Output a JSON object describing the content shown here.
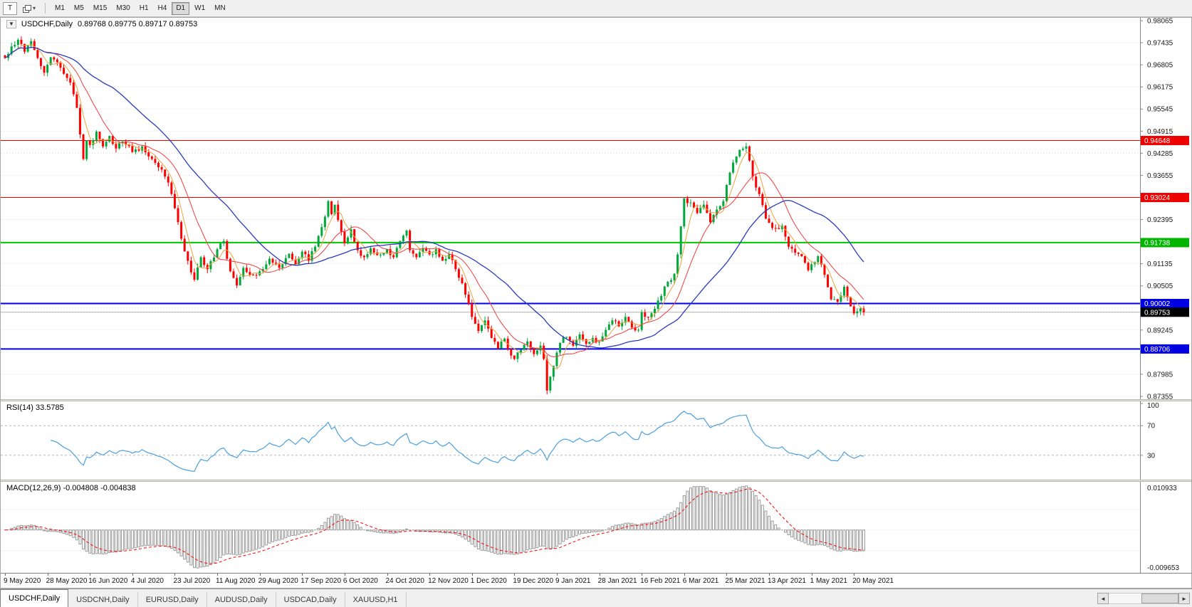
{
  "toolbar": {
    "t_button": "T",
    "timeframes": [
      "M1",
      "M5",
      "M15",
      "M30",
      "H1",
      "H4",
      "D1",
      "W1",
      "MN"
    ],
    "active_timeframe": "D1"
  },
  "icons": {
    "chevron_down": "▾",
    "scroll_left": "◄",
    "scroll_right": "►",
    "one_click": "▼"
  },
  "chart_header": {
    "symbol": "USDCHF,Daily",
    "ohlc": "0.89768 0.89775 0.89717 0.89753"
  },
  "indicators": {
    "rsi_label": "RSI(14) 33.5785",
    "macd_label": "MACD(12,26,9) -0.004808 -0.004838"
  },
  "tabbar": {
    "tabs": [
      "USDCHF,Daily",
      "USDCNH,Daily",
      "EURUSD,Daily",
      "AUDUSD,Daily",
      "USDCAD,Daily",
      "XAUUSD,H1"
    ],
    "active_tab": "USDCHF,Daily"
  },
  "colors": {
    "bull": "#00a83c",
    "bear": "#ff0000",
    "grid": "#d8d8d8",
    "rsi_line": "#4aa0e0",
    "level_line": "#b8b8b8",
    "macd_hist": "#9a9a9a",
    "macd_signal": "#ff0000",
    "axis_text": "#1a1a1a",
    "tag_text": "#ffffff"
  },
  "chart_data": [
    {
      "type": "candlestick",
      "title": "USDCHF,Daily",
      "ohlc_display": {
        "open": "0.89768",
        "high": "0.89775",
        "low": "0.89717",
        "close": "0.89753"
      },
      "y_min": 0.87355,
      "y_max": 0.98065,
      "y_ticks": [
        0.98065,
        0.97435,
        0.96805,
        0.96175,
        0.95545,
        0.94915,
        0.94285,
        0.93655,
        0.93025,
        0.92395,
        0.91765,
        0.91135,
        0.90505,
        0.89875,
        0.89245,
        0.88615,
        0.87985,
        0.87355
      ],
      "price_tags": [
        {
          "price": 0.94648,
          "label": "0.94648",
          "bg": "#ee0000",
          "line_color": "#ee0000",
          "width": 1
        },
        {
          "price": 0.93024,
          "label": "0.93024",
          "bg": "#ee0000",
          "line_color": "#ee0000",
          "width": 1
        },
        {
          "price": 0.91738,
          "label": "0.91738",
          "bg": "#00b400",
          "line_color": "#00c800",
          "width": 2
        },
        {
          "price": 0.90002,
          "label": "0.90002",
          "bg": "#0000e0",
          "line_color": "#0000ee",
          "width": 2
        },
        {
          "price": 0.89753,
          "label": "0.89753",
          "bg": "#000000",
          "line_color": "#b0b0b0",
          "width": 1
        },
        {
          "price": 0.88706,
          "label": "0.88706",
          "bg": "#0000e0",
          "line_color": "#0000ee",
          "width": 2
        }
      ],
      "x_labels": [
        {
          "i": 0,
          "label": "9 May 2020"
        },
        {
          "i": 13,
          "label": "28 May 2020"
        },
        {
          "i": 26,
          "label": "16 Jun 2020"
        },
        {
          "i": 39,
          "label": "4 Jul 2020"
        },
        {
          "i": 52,
          "label": "23 Jul 2020"
        },
        {
          "i": 65,
          "label": "11 Aug 2020"
        },
        {
          "i": 78,
          "label": "29 Aug 2020"
        },
        {
          "i": 91,
          "label": "17 Sep 2020"
        },
        {
          "i": 104,
          "label": "6 Oct 2020"
        },
        {
          "i": 117,
          "label": "24 Oct 2020"
        },
        {
          "i": 130,
          "label": "12 Nov 2020"
        },
        {
          "i": 143,
          "label": "1 Dec 2020"
        },
        {
          "i": 156,
          "label": "19 Dec 2020"
        },
        {
          "i": 169,
          "label": "9 Jan 2021"
        },
        {
          "i": 182,
          "label": "28 Jan 2021"
        },
        {
          "i": 195,
          "label": "16 Feb 2021"
        },
        {
          "i": 208,
          "label": "6 Mar 2021"
        },
        {
          "i": 221,
          "label": "25 Mar 2021"
        },
        {
          "i": 234,
          "label": "13 Apr 2021"
        },
        {
          "i": 247,
          "label": "1 May 2021"
        },
        {
          "i": 260,
          "label": "20 May 2021"
        }
      ],
      "n_candles": 264,
      "close_anchors": [
        [
          0,
          0.97
        ],
        [
          2,
          0.9733
        ],
        [
          4,
          0.9752
        ],
        [
          6,
          0.9718
        ],
        [
          8,
          0.9748
        ],
        [
          10,
          0.97
        ],
        [
          12,
          0.9658
        ],
        [
          14,
          0.9702
        ],
        [
          16,
          0.9688
        ],
        [
          18,
          0.9655
        ],
        [
          20,
          0.963
        ],
        [
          22,
          0.9558
        ],
        [
          23,
          0.9482
        ],
        [
          24,
          0.9412
        ],
        [
          25,
          0.9465
        ],
        [
          26,
          0.9452
        ],
        [
          28,
          0.949
        ],
        [
          30,
          0.9448
        ],
        [
          32,
          0.9478
        ],
        [
          34,
          0.9442
        ],
        [
          36,
          0.9462
        ],
        [
          39,
          0.9432
        ],
        [
          42,
          0.9448
        ],
        [
          45,
          0.9412
        ],
        [
          48,
          0.9382
        ],
        [
          50,
          0.9345
        ],
        [
          52,
          0.9272
        ],
        [
          54,
          0.9185
        ],
        [
          56,
          0.9122
        ],
        [
          58,
          0.9068
        ],
        [
          60,
          0.9132
        ],
        [
          62,
          0.9098
        ],
        [
          65,
          0.9155
        ],
        [
          67,
          0.9178
        ],
        [
          69,
          0.9092
        ],
        [
          71,
          0.9052
        ],
        [
          73,
          0.9102
        ],
        [
          75,
          0.9082
        ],
        [
          78,
          0.9092
        ],
        [
          81,
          0.9128
        ],
        [
          84,
          0.9102
        ],
        [
          87,
          0.9142
        ],
        [
          89,
          0.9112
        ],
        [
          91,
          0.9148
        ],
        [
          93,
          0.9122
        ],
        [
          95,
          0.9162
        ],
        [
          97,
          0.9218
        ],
        [
          99,
          0.9292
        ],
        [
          100,
          0.9255
        ],
        [
          101,
          0.9282
        ],
        [
          103,
          0.9205
        ],
        [
          104,
          0.9172
        ],
        [
          106,
          0.9212
        ],
        [
          108,
          0.9152
        ],
        [
          110,
          0.9132
        ],
        [
          112,
          0.9158
        ],
        [
          114,
          0.9138
        ],
        [
          117,
          0.9155
        ],
        [
          119,
          0.9132
        ],
        [
          121,
          0.9178
        ],
        [
          123,
          0.9208
        ],
        [
          124,
          0.9152
        ],
        [
          126,
          0.9132
        ],
        [
          128,
          0.9158
        ],
        [
          130,
          0.914
        ],
        [
          132,
          0.9155
        ],
        [
          134,
          0.9122
        ],
        [
          136,
          0.914
        ],
        [
          138,
          0.9098
        ],
        [
          140,
          0.9058
        ],
        [
          142,
          0.9
        ],
        [
          143,
          0.8962
        ],
        [
          145,
          0.8922
        ],
        [
          147,
          0.8952
        ],
        [
          149,
          0.8902
        ],
        [
          151,
          0.8872
        ],
        [
          153,
          0.89
        ],
        [
          155,
          0.8852
        ],
        [
          156,
          0.8842
        ],
        [
          158,
          0.8868
        ],
        [
          160,
          0.8892
        ],
        [
          162,
          0.8856
        ],
        [
          164,
          0.888
        ],
        [
          165,
          0.8842
        ],
        [
          166,
          0.8752
        ],
        [
          168,
          0.8822
        ],
        [
          170,
          0.8888
        ],
        [
          172,
          0.8905
        ],
        [
          174,
          0.888
        ],
        [
          176,
          0.8912
        ],
        [
          178,
          0.8885
        ],
        [
          180,
          0.8902
        ],
        [
          182,
          0.8892
        ],
        [
          184,
          0.8925
        ],
        [
          186,
          0.8952
        ],
        [
          188,
          0.8935
        ],
        [
          190,
          0.8962
        ],
        [
          192,
          0.8932
        ],
        [
          194,
          0.8925
        ],
        [
          195,
          0.8975
        ],
        [
          197,
          0.896
        ],
        [
          199,
          0.8985
        ],
        [
          201,
          0.9022
        ],
        [
          203,
          0.9062
        ],
        [
          205,
          0.9085
        ],
        [
          206,
          0.914
        ],
        [
          207,
          0.922
        ],
        [
          208,
          0.93
        ],
        [
          210,
          0.9288
        ],
        [
          212,
          0.9258
        ],
        [
          214,
          0.9282
        ],
        [
          216,
          0.9232
        ],
        [
          218,
          0.9268
        ],
        [
          220,
          0.9292
        ],
        [
          221,
          0.9338
        ],
        [
          223,
          0.9402
        ],
        [
          225,
          0.9438
        ],
        [
          227,
          0.9448
        ],
        [
          229,
          0.9362
        ],
        [
          231,
          0.9312
        ],
        [
          233,
          0.9242
        ],
        [
          234,
          0.923
        ],
        [
          236,
          0.9215
        ],
        [
          238,
          0.9222
        ],
        [
          240,
          0.9162
        ],
        [
          242,
          0.9145
        ],
        [
          244,
          0.9135
        ],
        [
          246,
          0.9095
        ],
        [
          247,
          0.9112
        ],
        [
          249,
          0.9135
        ],
        [
          251,
          0.9082
        ],
        [
          253,
          0.9012
        ],
        [
          255,
          0.9005
        ],
        [
          257,
          0.9048
        ],
        [
          259,
          0.8992
        ],
        [
          260,
          0.8972
        ],
        [
          262,
          0.8986
        ],
        [
          263,
          0.8975
        ]
      ],
      "moving_averages": [
        {
          "period": 5,
          "color": "#e8a33d",
          "width": 1
        },
        {
          "period": 13,
          "color": "#f23b3b",
          "width": 1
        },
        {
          "period": 34,
          "color": "#2b3bbf",
          "width": 1.3
        }
      ]
    },
    {
      "type": "line",
      "name": "RSI",
      "label": "RSI(14) 33.5785",
      "period": 14,
      "last_value": 33.5785,
      "range": [
        0,
        100
      ],
      "levels": [
        70,
        30
      ],
      "y_axis_labels": [
        100,
        70,
        30
      ]
    },
    {
      "type": "macd",
      "label": "MACD(12,26,9) -0.004808 -0.004838",
      "fast": 12,
      "slow": 26,
      "signal": 9,
      "main_value": -0.004808,
      "signal_value": -0.004838,
      "y_max": 0.010933,
      "y_min": -0.009653,
      "y_max_label": "0.010933",
      "y_min_label": "-0.009653",
      "gridlines": [
        0.005,
        0,
        -0.005
      ]
    }
  ]
}
